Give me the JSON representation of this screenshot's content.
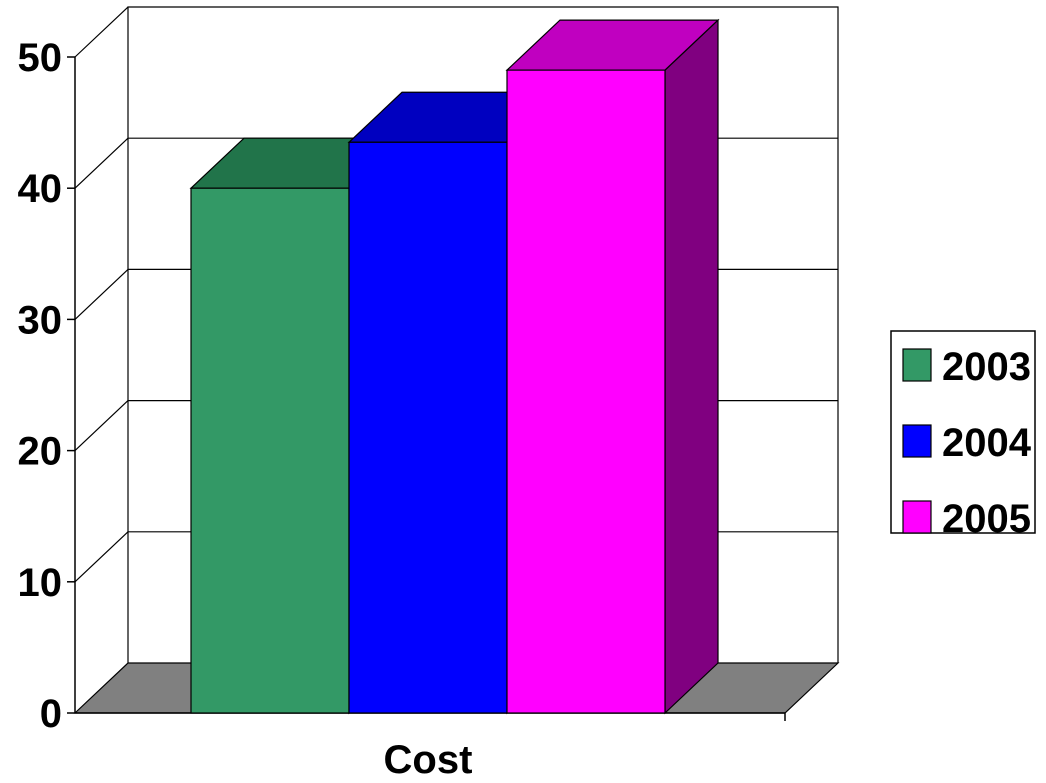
{
  "chart_data": {
    "type": "bar",
    "categories": [
      "Cost"
    ],
    "series": [
      {
        "name": "2003",
        "values": [
          40
        ],
        "color": "#339966",
        "top_color": "#21744A",
        "side_color": "#1E5E3E"
      },
      {
        "name": "2004",
        "values": [
          43.5
        ],
        "color": "#0000FF",
        "top_color": "#0000C0",
        "side_color": "#000080"
      },
      {
        "name": "2005",
        "values": [
          49
        ],
        "color": "#FF00FF",
        "top_color": "#C000C0",
        "side_color": "#800080"
      }
    ],
    "ylim": [
      0,
      50
    ],
    "yticks": [
      0,
      10,
      20,
      30,
      40,
      50
    ],
    "grid": true,
    "three_d": true,
    "legend_position": "right",
    "floor_color": "#808080"
  }
}
